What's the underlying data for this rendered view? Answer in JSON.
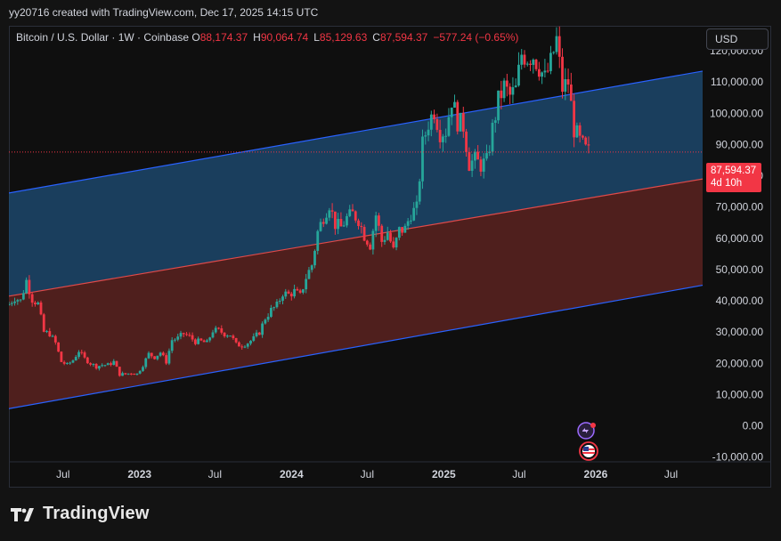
{
  "header": {
    "attribution": "yy20716 created with TradingView.com, Dec 17, 2025 14:15 UTC"
  },
  "legend": {
    "symbol": "Bitcoin / U.S. Dollar · 1W · Coinbase",
    "open_label": "O",
    "open": "88,174.37",
    "high_label": "H",
    "high": "90,064.74",
    "low_label": "L",
    "low": "85,129.63",
    "close_label": "C",
    "close": "87,594.37",
    "change": "−577.24 (−0.65%)"
  },
  "currency_button": "USD",
  "price_tag": {
    "price": "87,594.37",
    "countdown": "4d 10h"
  },
  "brand": "TradingView",
  "colors": {
    "up": "#26a69a",
    "down": "#f23645",
    "upper_channel_fill": "#1f4f78",
    "lower_channel_fill": "#5a2220",
    "channel_line": "#2962ff",
    "mid_line": "#e04a4a"
  },
  "icons": [
    "dividends-event-icon",
    "us-flag-event-icon"
  ],
  "chart_data": {
    "type": "candlestick",
    "timeframe": "1W",
    "y_axis": {
      "ticks": [
        -10000,
        0,
        10000,
        20000,
        30000,
        40000,
        50000,
        60000,
        70000,
        80000,
        90000,
        100000,
        110000,
        120000
      ],
      "tick_labels": [
        "-10,000.00",
        "0.00",
        "10,000.00",
        "20,000.00",
        "30,000.00",
        "40,000.00",
        "50,000.00",
        "60,000.00",
        "70,000.00",
        "80,000.00",
        "90,000.00",
        "100,000.00",
        "110,000.00",
        "120,000.00"
      ],
      "ylim": [
        -11500,
        128000
      ]
    },
    "x_axis": {
      "ticks": [
        "2022-07-01",
        "2023-01-01",
        "2023-07-01",
        "2024-01-01",
        "2024-07-01",
        "2025-01-01",
        "2025-07-01",
        "2026-01-01",
        "2026-07-01"
      ],
      "tick_labels": [
        "Jul",
        "2023",
        "Jul",
        "2024",
        "Jul",
        "2025",
        "Jul",
        "2026",
        "Jul"
      ],
      "xlim": [
        "2022-02-21",
        "2026-09-15"
      ]
    },
    "last_price": 87594.37,
    "channel": {
      "x_start": "2022-02-21",
      "x_end": "2026-09-15",
      "upper_start": 74500,
      "upper_end": 113500,
      "mid_start": 41500,
      "mid_end": 79000,
      "lower_start": 5500,
      "lower_end": 45000
    },
    "closes": [
      {
        "date": "2022-02-21",
        "close": 39000
      },
      {
        "date": "2022-03-07",
        "close": 41000
      },
      {
        "date": "2022-03-21",
        "close": 40000
      },
      {
        "date": "2022-04-04",
        "close": 46500
      },
      {
        "date": "2022-04-18",
        "close": 40500
      },
      {
        "date": "2022-05-02",
        "close": 39000
      },
      {
        "date": "2022-05-16",
        "close": 30000
      },
      {
        "date": "2022-05-30",
        "close": 29500
      },
      {
        "date": "2022-06-13",
        "close": 26500
      },
      {
        "date": "2022-06-27",
        "close": 20500
      },
      {
        "date": "2022-07-11",
        "close": 19500
      },
      {
        "date": "2022-07-25",
        "close": 21000
      },
      {
        "date": "2022-08-08",
        "close": 24000
      },
      {
        "date": "2022-08-22",
        "close": 21500
      },
      {
        "date": "2022-09-05",
        "close": 20000
      },
      {
        "date": "2022-09-19",
        "close": 19000
      },
      {
        "date": "2022-10-03",
        "close": 19500
      },
      {
        "date": "2022-10-17",
        "close": 19500
      },
      {
        "date": "2022-10-31",
        "close": 20500
      },
      {
        "date": "2022-11-14",
        "close": 16500
      },
      {
        "date": "2022-11-28",
        "close": 16500
      },
      {
        "date": "2022-12-12",
        "close": 17000
      },
      {
        "date": "2022-12-26",
        "close": 16600
      },
      {
        "date": "2023-01-09",
        "close": 19500
      },
      {
        "date": "2023-01-23",
        "close": 23000
      },
      {
        "date": "2023-02-06",
        "close": 22000
      },
      {
        "date": "2023-02-20",
        "close": 23500
      },
      {
        "date": "2023-03-06",
        "close": 20500
      },
      {
        "date": "2023-03-20",
        "close": 27500
      },
      {
        "date": "2023-04-03",
        "close": 28000
      },
      {
        "date": "2023-04-17",
        "close": 29500
      },
      {
        "date": "2023-05-01",
        "close": 28500
      },
      {
        "date": "2023-05-15",
        "close": 27000
      },
      {
        "date": "2023-05-29",
        "close": 27000
      },
      {
        "date": "2023-06-12",
        "close": 26500
      },
      {
        "date": "2023-06-26",
        "close": 30500
      },
      {
        "date": "2023-07-10",
        "close": 30500
      },
      {
        "date": "2023-07-24",
        "close": 29500
      },
      {
        "date": "2023-08-07",
        "close": 29200
      },
      {
        "date": "2023-08-21",
        "close": 26000
      },
      {
        "date": "2023-09-04",
        "close": 25800
      },
      {
        "date": "2023-09-18",
        "close": 26600
      },
      {
        "date": "2023-10-02",
        "close": 27900
      },
      {
        "date": "2023-10-16",
        "close": 30000
      },
      {
        "date": "2023-10-30",
        "close": 34500
      },
      {
        "date": "2023-11-13",
        "close": 37000
      },
      {
        "date": "2023-11-27",
        "close": 38500
      },
      {
        "date": "2023-12-11",
        "close": 42500
      },
      {
        "date": "2023-12-25",
        "close": 42000
      },
      {
        "date": "2024-01-08",
        "close": 43000
      },
      {
        "date": "2024-01-22",
        "close": 41500
      },
      {
        "date": "2024-02-05",
        "close": 47500
      },
      {
        "date": "2024-02-19",
        "close": 51500
      },
      {
        "date": "2024-03-04",
        "close": 62000
      },
      {
        "date": "2024-03-18",
        "close": 67000
      },
      {
        "date": "2024-04-01",
        "close": 71000
      },
      {
        "date": "2024-04-15",
        "close": 64500
      },
      {
        "date": "2024-04-29",
        "close": 63500
      },
      {
        "date": "2024-05-13",
        "close": 66500
      },
      {
        "date": "2024-05-27",
        "close": 67800
      },
      {
        "date": "2024-06-10",
        "close": 66000
      },
      {
        "date": "2024-06-24",
        "close": 61000
      },
      {
        "date": "2024-07-08",
        "close": 58000
      },
      {
        "date": "2024-07-22",
        "close": 67500
      },
      {
        "date": "2024-08-05",
        "close": 59000
      },
      {
        "date": "2024-08-19",
        "close": 62000
      },
      {
        "date": "2024-09-02",
        "close": 56000
      },
      {
        "date": "2024-09-16",
        "close": 62500
      },
      {
        "date": "2024-09-30",
        "close": 63000
      },
      {
        "date": "2024-10-14",
        "close": 68000
      },
      {
        "date": "2024-10-28",
        "close": 69500
      },
      {
        "date": "2024-11-11",
        "close": 90000
      },
      {
        "date": "2024-11-25",
        "close": 97000
      },
      {
        "date": "2024-12-09",
        "close": 101000
      },
      {
        "date": "2024-12-23",
        "close": 94000
      },
      {
        "date": "2025-01-06",
        "close": 94500
      },
      {
        "date": "2025-01-20",
        "close": 104500
      },
      {
        "date": "2025-02-03",
        "close": 97500
      },
      {
        "date": "2025-02-17",
        "close": 96000
      },
      {
        "date": "2025-03-03",
        "close": 84000
      },
      {
        "date": "2025-03-17",
        "close": 85000
      },
      {
        "date": "2025-03-31",
        "close": 83500
      },
      {
        "date": "2025-04-14",
        "close": 84500
      },
      {
        "date": "2025-04-28",
        "close": 95000
      },
      {
        "date": "2025-05-12",
        "close": 104000
      },
      {
        "date": "2025-05-26",
        "close": 108500
      },
      {
        "date": "2025-06-09",
        "close": 105500
      },
      {
        "date": "2025-06-23",
        "close": 107500
      },
      {
        "date": "2025-07-07",
        "close": 119000
      },
      {
        "date": "2025-07-21",
        "close": 118000
      },
      {
        "date": "2025-08-04",
        "close": 118500
      },
      {
        "date": "2025-08-18",
        "close": 115000
      },
      {
        "date": "2025-09-01",
        "close": 111000
      },
      {
        "date": "2025-09-15",
        "close": 116000
      },
      {
        "date": "2025-09-29",
        "close": 123500
      },
      {
        "date": "2025-10-13",
        "close": 108000
      },
      {
        "date": "2025-10-27",
        "close": 110000
      },
      {
        "date": "2025-11-10",
        "close": 95000
      },
      {
        "date": "2025-11-24",
        "close": 91000
      },
      {
        "date": "2025-12-08",
        "close": 88200
      },
      {
        "date": "2025-12-15",
        "close": 87594
      }
    ]
  }
}
